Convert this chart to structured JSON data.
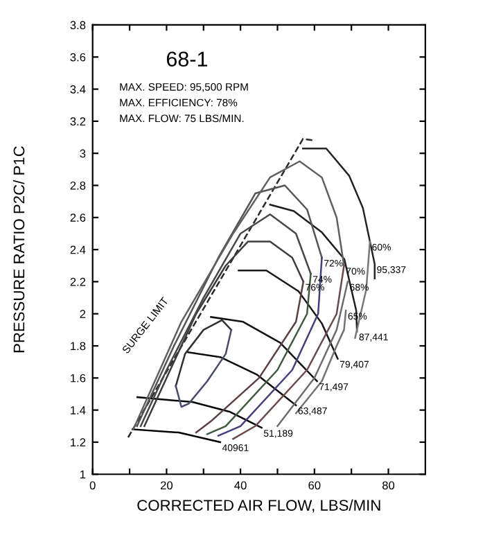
{
  "chart_data": {
    "type": "line",
    "title": "68-1",
    "xlabel": "CORRECTED AIR FLOW, LBS/MIN",
    "ylabel": "PRESSURE RATIO P2C/ P1C",
    "annotations": [
      "MAX. SPEED: 95,500 RPM",
      "MAX. EFFICIENCY: 78%",
      "MAX. FLOW: 75 LBS/MIN.",
      "SURGE LIMIT"
    ],
    "xlim": [
      0,
      90
    ],
    "xticks": [
      0,
      {
        "value": 10,
        "label": null
      },
      20,
      {
        "value": 30,
        "label": null
      },
      40,
      {
        "value": 50,
        "label": null
      },
      60,
      {
        "value": 70,
        "label": null
      },
      80
    ],
    "ylim": [
      1,
      3.8
    ],
    "yticks": [
      1,
      1.2,
      1.4,
      1.6,
      1.8,
      2,
      2.2,
      2.4,
      2.6,
      2.8,
      3,
      3.2,
      3.4,
      3.6,
      3.8
    ],
    "grid": false,
    "legend": false,
    "marker": "none",
    "series": [
      {
        "name": "40961",
        "color": "#000000",
        "x": [
          10.8,
          23.3,
          34.5
        ],
        "values": [
          1.28,
          1.26,
          1.2
        ]
      },
      {
        "name": "51,189",
        "color": "#060606",
        "x": [
          12.1,
          27,
          37,
          45.7
        ],
        "values": [
          1.48,
          1.45,
          1.39,
          1.29
        ]
      },
      {
        "name": "63,487",
        "color": "#0c0c0c",
        "x": [
          25.8,
          34.5,
          44.5,
          55
        ],
        "values": [
          1.76,
          1.73,
          1.62,
          1.43
        ]
      },
      {
        "name": "71,497",
        "color": "#121212",
        "x": [
          32,
          40.7,
          50.7,
          60.7
        ],
        "values": [
          1.98,
          1.95,
          1.82,
          1.58
        ]
      },
      {
        "name": "79,407",
        "color": "#181818",
        "x": [
          39.5,
          47,
          55.7,
          62,
          66.3
        ],
        "values": [
          2.27,
          2.27,
          2.14,
          1.94,
          1.72
        ]
      },
      {
        "name": "87,441",
        "color": "#1e1e1e",
        "x": [
          48,
          54.4,
          61.9,
          68.1,
          71.3,
          71.5
        ],
        "values": [
          2.68,
          2.64,
          2.51,
          2.34,
          2.02,
          1.89
        ]
      },
      {
        "name": "95,337",
        "color": "#242424",
        "x": [
          56.9,
          63.2,
          69.4,
          73.1,
          76.3,
          76.3
        ],
        "values": [
          3.03,
          3.03,
          2.86,
          2.66,
          2.31,
          2.22
        ]
      },
      {
        "color": "#2a2a2a",
        "line_style": "dashed",
        "x": [
          9.6,
          33,
          56.9,
          60
        ],
        "values": [
          1.23,
          2.15,
          3.09,
          3.08
        ]
      },
      {
        "color": "#303030",
        "x": [
          22.5,
          25,
          30,
          35,
          37.5
        ],
        "values": [
          1.55,
          1.75,
          1.9,
          1.96,
          1.9
        ]
      },
      {
        "color": "#4a4a6a",
        "x": [
          22.5,
          24,
          26,
          31,
          36,
          37.5
        ],
        "values": [
          1.55,
          1.42,
          1.44,
          1.58,
          1.75,
          1.9
        ]
      },
      {
        "color": "#3c3c3c",
        "x": [
          14,
          20,
          28,
          36,
          42,
          48,
          54,
          57
        ],
        "values": [
          1.3,
          1.6,
          2.0,
          2.3,
          2.45,
          2.45,
          2.35,
          2.2
        ]
      },
      {
        "name": "76%",
        "color": "#5a4040",
        "x": [
          57,
          55,
          45,
          32,
          28
        ],
        "values": [
          2.2,
          1.95,
          1.6,
          1.33,
          1.26
        ]
      },
      {
        "color": "#484848",
        "x": [
          13,
          20,
          30,
          40,
          48,
          55,
          59
        ],
        "values": [
          1.3,
          1.65,
          2.1,
          2.5,
          2.62,
          2.5,
          2.25
        ]
      },
      {
        "name": "74%",
        "color": "#405a40",
        "x": [
          59,
          58,
          50,
          36,
          31
        ],
        "values": [
          2.25,
          2.0,
          1.65,
          1.3,
          1.25
        ]
      },
      {
        "color": "#545454",
        "x": [
          12,
          22,
          34,
          44,
          52,
          58,
          62
        ],
        "values": [
          1.3,
          1.8,
          2.35,
          2.75,
          2.8,
          2.65,
          2.35
        ]
      },
      {
        "name": "72%",
        "color": "#40407a",
        "x": [
          62,
          61,
          54,
          40,
          34
        ],
        "values": [
          2.35,
          2.0,
          1.65,
          1.3,
          1.24
        ]
      },
      {
        "color": "#606060",
        "x": [
          11,
          24,
          38,
          48,
          56,
          62,
          66,
          68
        ],
        "values": [
          1.28,
          1.95,
          2.5,
          2.85,
          2.95,
          2.85,
          2.6,
          2.3
        ]
      },
      {
        "name": "70%",
        "color": "#6a4a4a",
        "x": [
          68,
          66,
          58,
          44,
          38
        ],
        "values": [
          2.3,
          2.0,
          1.65,
          1.3,
          1.22
        ]
      },
      {
        "name": "68%",
        "color": "#6c6c6c",
        "x": [
          69,
          68,
          66,
          60,
          50
        ],
        "values": [
          2.2,
          2.1,
          1.9,
          1.6,
          1.3
        ]
      },
      {
        "name": "65%",
        "color": "#727272",
        "x": [
          68.5,
          68,
          66,
          62,
          55
        ],
        "values": [
          2.02,
          1.9,
          1.8,
          1.58,
          1.38
        ]
      },
      {
        "name": "60%",
        "color": "#787878",
        "x": [
          75,
          74,
          71
        ],
        "values": [
          2.45,
          2.15,
          1.85
        ]
      }
    ]
  }
}
